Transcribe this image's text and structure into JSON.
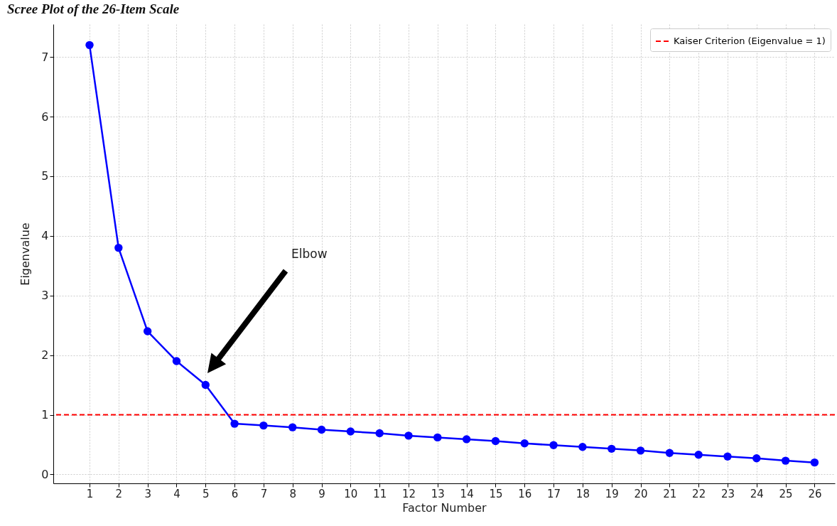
{
  "chart_data": {
    "type": "line",
    "title": "Scree Plot of the 26-Item Scale",
    "xlabel": "Factor Number",
    "ylabel": "Eigenvalue",
    "x": [
      1,
      2,
      3,
      4,
      5,
      6,
      7,
      8,
      9,
      10,
      11,
      12,
      13,
      14,
      15,
      16,
      17,
      18,
      19,
      20,
      21,
      22,
      23,
      24,
      25,
      26
    ],
    "series": [
      {
        "color": "#0000ff",
        "values": [
          7.2,
          3.8,
          2.4,
          1.9,
          1.5,
          0.85,
          0.82,
          0.79,
          0.75,
          0.72,
          0.69,
          0.65,
          0.62,
          0.59,
          0.56,
          0.52,
          0.49,
          0.46,
          0.43,
          0.4,
          0.36,
          0.33,
          0.3,
          0.27,
          0.23,
          0.2
        ]
      }
    ],
    "xlim": [
      -0.25,
      26.7
    ],
    "xticks": [
      1,
      2,
      3,
      4,
      5,
      6,
      7,
      8,
      9,
      10,
      11,
      12,
      13,
      14,
      15,
      16,
      17,
      18,
      19,
      20,
      21,
      22,
      23,
      24,
      25,
      26
    ],
    "ylim": [
      -0.15,
      7.55
    ],
    "yticks": [
      0,
      1,
      2,
      3,
      4,
      5,
      6,
      7
    ],
    "ref_lines": [
      {
        "axis": "y",
        "value": 1,
        "label": "Kaiser Criterion (Eigenvalue = 1)",
        "color": "#ff0000",
        "line_style": "dashed"
      }
    ],
    "annotations": [
      "Elbow"
    ],
    "grid": true,
    "legend": "top right",
    "marker": "circle",
    "line_style": "solid"
  }
}
